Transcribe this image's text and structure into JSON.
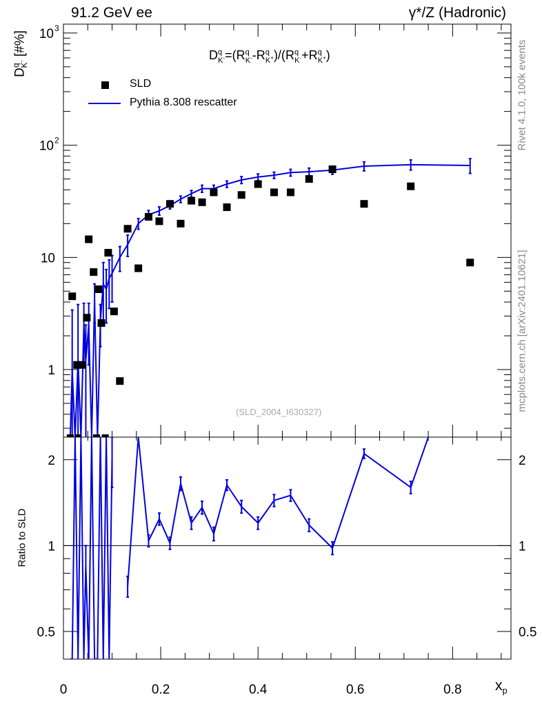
{
  "header": {
    "left": "91.2 GeV ee",
    "right": "γ*/Z (Hadronic)"
  },
  "side_text": {
    "rivet": "Rivet 4.1.0,  100k events",
    "mcplots": "mcplots.cern.ch [arXiv:2401.10621]"
  },
  "analysis_id": "(SLD_2004_I630327)",
  "formula": {
    "text": "D_K-^q = (R_K-^q - R_K+^q)/(R_K-^q + R_K+^q)",
    "D": "D",
    "q": "q",
    "Km": "K",
    "minus": "-",
    "Kp": "K",
    "plus": "+",
    "eq": "=(",
    "R": "R",
    "sep": "-",
    "mid": ")/(",
    "plusop": "+",
    "close": ")"
  },
  "legend": {
    "data_label": "SLD",
    "mc_label": "Pythia 8.308 rescatter"
  },
  "colors": {
    "mc": "#0000dd",
    "data": "#000000",
    "side_text": "#888888",
    "analysis_id": "#aaaaaa"
  },
  "chart_data": [
    {
      "panel": "main",
      "type": "scatter",
      "yscale": "log",
      "xlim": [
        0,
        0.92
      ],
      "ylim": [
        0.25,
        1200
      ],
      "ylabel": "D_K-^q [#%]",
      "ylabel_parts": {
        "main": "D",
        "sup": "q",
        "sub": "K",
        "subsup": "-",
        "units": "[#%]"
      },
      "yticks": [
        {
          "value": 1,
          "label": "1"
        },
        {
          "value": 10,
          "label": "10"
        },
        {
          "value": 100,
          "label": "10",
          "exp": "2"
        },
        {
          "value": 1000,
          "label": "10",
          "exp": "3"
        }
      ],
      "series": [
        {
          "name": "SLD",
          "kind": "points",
          "x": [
            0.018,
            0.028,
            0.038,
            0.048,
            0.052,
            0.062,
            0.072,
            0.078,
            0.092,
            0.104,
            0.116,
            0.132,
            0.154,
            0.175,
            0.197,
            0.219,
            0.241,
            0.263,
            0.285,
            0.309,
            0.336,
            0.366,
            0.4,
            0.433,
            0.467,
            0.505,
            0.553,
            0.618,
            0.714,
            0.836
          ],
          "y": [
            4.5,
            1.1,
            1.1,
            2.9,
            14.5,
            7.4,
            5.2,
            2.6,
            11.0,
            3.3,
            0.79,
            18.0,
            8.0,
            23.0,
            21.0,
            30.0,
            20.0,
            32.0,
            31.0,
            38.0,
            28.0,
            36.0,
            45.0,
            38.0,
            38.0,
            50.0,
            61.0,
            30.0,
            43.0,
            9.0
          ],
          "offscale_x": [
            0.014,
            0.03,
            0.068,
            0.086
          ]
        },
        {
          "name": "Pythia 8.308 rescatter",
          "kind": "line",
          "x": [
            0.014,
            0.018,
            0.024,
            0.03,
            0.036,
            0.042,
            0.046,
            0.052,
            0.058,
            0.064,
            0.07,
            0.076,
            0.082,
            0.088,
            0.094,
            0.1,
            0.116,
            0.132,
            0.154,
            0.175,
            0.197,
            0.219,
            0.241,
            0.263,
            0.285,
            0.309,
            0.336,
            0.366,
            0.4,
            0.433,
            0.467,
            0.505,
            0.553,
            0.618,
            0.714,
            0.836
          ],
          "y": [
            0.25,
            1.0,
            0.25,
            1.2,
            0.25,
            2.5,
            1.2,
            2.5,
            0.25,
            4.2,
            0.25,
            2.7,
            5.8,
            5.2,
            6.5,
            7.2,
            10.0,
            13.0,
            20.0,
            24.0,
            26.0,
            29.0,
            33.0,
            37.0,
            41.0,
            41.0,
            45.0,
            49.0,
            52.0,
            54.0,
            57.0,
            58.0,
            60.0,
            65.0,
            67.0,
            66.0
          ],
          "err": [
            0.0,
            2.4,
            0.0,
            2.6,
            0.0,
            1.4,
            1.3,
            1.4,
            0.0,
            1.6,
            0.0,
            1.1,
            3.2,
            2.6,
            3.0,
            3.2,
            2.5,
            2.8,
            2.2,
            2.2,
            2.2,
            2.0,
            2.2,
            2.5,
            3.0,
            3.0,
            3.0,
            3.5,
            3.5,
            3.5,
            4.0,
            4.5,
            5.0,
            6.0,
            7.0,
            10.0
          ]
        }
      ]
    },
    {
      "panel": "ratio",
      "type": "line",
      "yscale": "log",
      "xlim": [
        0,
        0.92
      ],
      "ylim": [
        0.4,
        2.4
      ],
      "ylabel": "Ratio to SLD",
      "xlabel": "x_p",
      "xlabel_parts": {
        "main": "x",
        "sub": "p"
      },
      "xticks": [
        0,
        0.2,
        0.4,
        0.6,
        0.8
      ],
      "xtick_labels": [
        "0",
        "0.2",
        "0.4",
        "0.6",
        "0.8"
      ],
      "yticks": [
        0.5,
        1,
        2
      ],
      "ytick_labels": [
        "0.5",
        "1",
        "2"
      ],
      "reference": 1,
      "series": [
        {
          "name": "Pythia 8.308 rescatter / SLD",
          "x": [
            0.132,
            0.154,
            0.175,
            0.197,
            0.219,
            0.241,
            0.263,
            0.285,
            0.309,
            0.336,
            0.366,
            0.4,
            0.433,
            0.467,
            0.505,
            0.553,
            0.618,
            0.714,
            0.75
          ],
          "y": [
            0.72,
            2.4,
            1.04,
            1.24,
            1.02,
            1.65,
            1.2,
            1.36,
            1.1,
            1.63,
            1.37,
            1.2,
            1.44,
            1.5,
            1.18,
            0.98,
            2.1,
            1.6,
            2.4
          ],
          "err": [
            0.06,
            0.0,
            0.05,
            0.06,
            0.05,
            0.09,
            0.06,
            0.07,
            0.06,
            0.07,
            0.07,
            0.06,
            0.07,
            0.07,
            0.06,
            0.05,
            0.08,
            0.08,
            0.0
          ]
        },
        {
          "name": "low-x noisy region",
          "x": [
            0.014,
            0.018,
            0.024,
            0.03,
            0.036,
            0.042,
            0.046,
            0.052,
            0.058,
            0.064,
            0.07,
            0.076,
            0.082,
            0.088,
            0.094,
            0.1
          ],
          "y": [
            0.4,
            0.4,
            2.4,
            0.4,
            2.4,
            0.4,
            0.85,
            0.4,
            2.4,
            0.4,
            0.4,
            2.4,
            0.4,
            2.4,
            0.4,
            2.0
          ],
          "err": [
            0.0,
            0.0,
            0.0,
            0.0,
            0.0,
            0.0,
            0.15,
            0.0,
            0.0,
            0.0,
            0.0,
            0.0,
            0.0,
            0.0,
            0.0,
            0.4
          ]
        }
      ]
    }
  ]
}
